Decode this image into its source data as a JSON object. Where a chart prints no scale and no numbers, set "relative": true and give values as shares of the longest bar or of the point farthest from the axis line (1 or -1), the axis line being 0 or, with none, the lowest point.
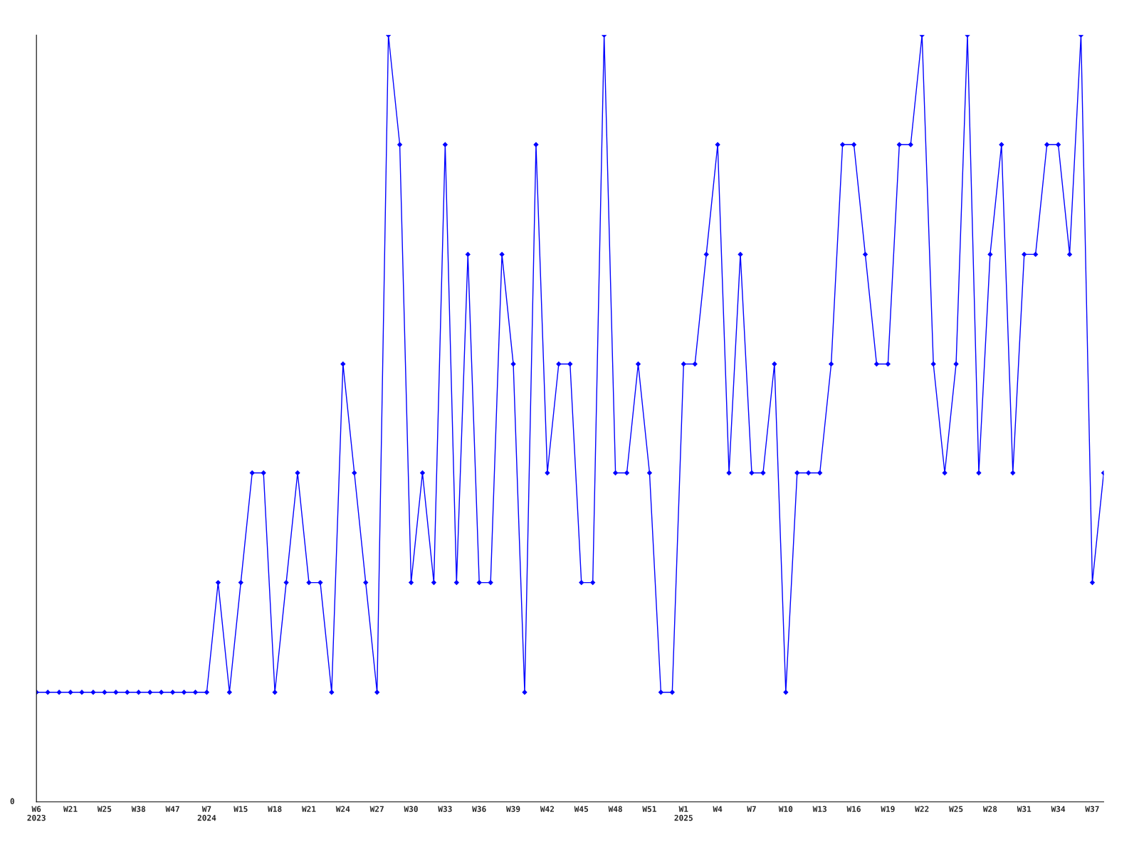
{
  "chart_data": {
    "type": "line",
    "relative": true,
    "marker": "diamond",
    "line_style": "solid",
    "grid": false,
    "annotations": [
      "0"
    ],
    "categories": [
      "W6\n2023",
      null,
      null,
      "W21",
      null,
      null,
      "W25",
      null,
      null,
      "W38",
      null,
      null,
      "W47",
      null,
      null,
      "W7\n2024",
      null,
      null,
      "W15",
      null,
      null,
      "W18",
      null,
      null,
      "W21",
      null,
      null,
      "W24",
      null,
      null,
      "W27",
      null,
      null,
      "W30",
      null,
      null,
      "W33",
      null,
      null,
      "W36",
      null,
      null,
      "W39",
      null,
      null,
      "W42",
      null,
      null,
      "W45",
      null,
      null,
      "W48",
      null,
      null,
      "W51",
      null,
      null,
      "W1\n2025",
      null,
      null,
      "W4",
      null,
      null,
      "W7",
      null,
      null,
      "W10",
      null,
      null,
      "W13",
      null,
      null,
      "W16",
      null,
      null,
      "W19",
      null,
      null,
      "W22",
      null,
      null,
      "W25",
      null,
      null,
      "W28",
      null,
      null,
      "W31",
      null,
      null,
      "W34",
      null,
      null,
      "W37",
      null
    ],
    "series": [
      {
        "color": "#0000ff",
        "values": [
          0.143,
          0.143,
          0.143,
          0.143,
          0.143,
          0.143,
          0.143,
          0.143,
          0.143,
          0.143,
          0.143,
          0.143,
          0.143,
          0.143,
          0.143,
          0.143,
          0.286,
          0.143,
          0.286,
          0.429,
          0.429,
          0.143,
          0.286,
          0.429,
          0.286,
          0.286,
          0.143,
          0.571,
          0.429,
          0.286,
          0.143,
          1,
          0.857,
          0.286,
          0.429,
          0.286,
          0.857,
          0.286,
          0.714,
          0.286,
          0.286,
          0.714,
          0.571,
          0.143,
          0.857,
          0.429,
          0.571,
          0.571,
          0.286,
          0.286,
          1,
          0.429,
          0.429,
          0.571,
          0.429,
          0.143,
          0.143,
          0.571,
          0.571,
          0.714,
          0.857,
          0.429,
          0.714,
          0.429,
          0.429,
          0.571,
          0.143,
          0.429,
          0.429,
          0.429,
          0.571,
          0.857,
          0.857,
          0.714,
          0.571,
          0.571,
          0.857,
          0.857,
          1,
          0.571,
          0.429,
          0.571,
          1,
          0.429,
          0.714,
          0.857,
          0.429,
          0.714,
          0.714,
          0.857,
          0.857,
          0.714,
          1,
          0.286,
          0.429
        ]
      }
    ]
  }
}
